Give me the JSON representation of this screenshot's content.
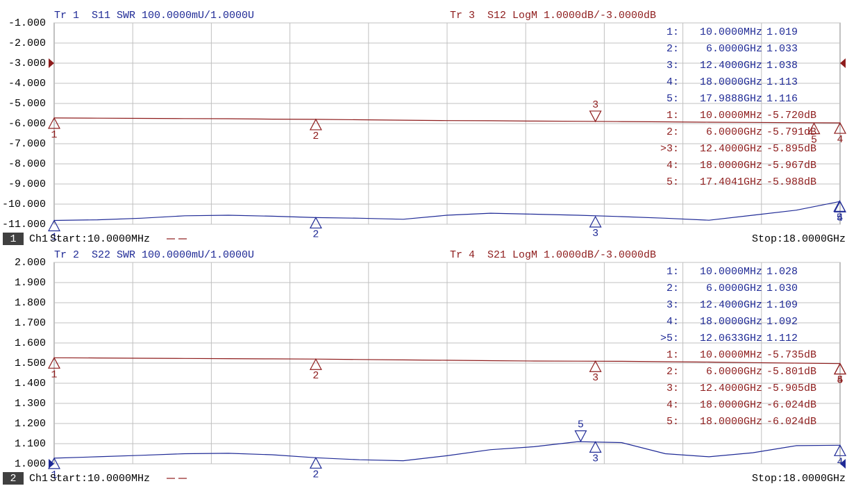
{
  "chart_data": [
    {
      "type": "line",
      "channel": "1",
      "channel_name": "Ch1",
      "start": "Start:10.0000MHz",
      "stop": "Stop:18.0000GHz",
      "xlim": [
        0.01,
        18
      ],
      "ylim": [
        -11,
        -1
      ],
      "y2lim": [
        1,
        2
      ],
      "grid": true,
      "yticks": [
        {
          "value": -1,
          "label": "-1.000"
        },
        {
          "value": -2,
          "label": "-2.000"
        },
        {
          "value": -3,
          "label": "-3.000"
        },
        {
          "value": -4,
          "label": "-4.000"
        },
        {
          "value": -5,
          "label": "-5.000"
        },
        {
          "value": -6,
          "label": "-6.000"
        },
        {
          "value": -7,
          "label": "-7.000"
        },
        {
          "value": -8,
          "label": "-8.000"
        },
        {
          "value": -9,
          "label": "-9.000"
        },
        {
          "value": -10,
          "label": "-10.000"
        },
        {
          "value": -11,
          "label": "-11.000"
        }
      ],
      "series": [
        {
          "name": "Tr 1  S11 SWR 100.0000mU/1.0000U",
          "color": "#1f2a96",
          "axis": "y2",
          "x": [
            0.01,
            1,
            2,
            3,
            4,
            5,
            6,
            7,
            8,
            9,
            10,
            11,
            12,
            13,
            14,
            15,
            16,
            17,
            18
          ],
          "values": [
            1.019,
            1.022,
            1.03,
            1.042,
            1.045,
            1.04,
            1.033,
            1.03,
            1.025,
            1.045,
            1.055,
            1.05,
            1.045,
            1.038,
            1.03,
            1.02,
            1.045,
            1.07,
            1.113
          ],
          "markers": [
            {
              "label": "1:",
              "name": "1",
              "x": 0.01,
              "x_label": "10.0000MHz",
              "y": 1.019,
              "y_label": "1.019"
            },
            {
              "label": "2:",
              "name": "2",
              "x": 6,
              "x_label": "6.0000GHz",
              "y": 1.033,
              "y_label": "1.033"
            },
            {
              "label": "3:",
              "name": "3",
              "x": 12.4,
              "x_label": "12.4000GHz",
              "y": 1.038,
              "y_label": "1.038"
            },
            {
              "label": "4:",
              "name": "4",
              "x": 18,
              "x_label": "18.0000GHz",
              "y": 1.113,
              "y_label": "1.113"
            },
            {
              "label": "5:",
              "name": "5",
              "x": 17.9888,
              "x_label": "17.9888GHz",
              "y": 1.116,
              "y_label": "1.116"
            }
          ]
        },
        {
          "name": "Tr 3  S12 LogM 1.0000dB/-3.0000dB",
          "color": "#8e1c1c",
          "axis": "y",
          "ref": -3,
          "x": [
            0.01,
            1,
            2,
            3,
            4,
            5,
            6,
            7,
            8,
            9,
            10,
            11,
            12,
            13,
            14,
            15,
            16,
            17,
            18
          ],
          "values": [
            -5.72,
            -5.73,
            -5.74,
            -5.75,
            -5.76,
            -5.78,
            -5.791,
            -5.81,
            -5.83,
            -5.85,
            -5.86,
            -5.875,
            -5.885,
            -5.9,
            -5.915,
            -5.93,
            -5.94,
            -5.955,
            -5.967
          ],
          "markers": [
            {
              "label": "1:",
              "name": "1",
              "x": 0.01,
              "x_label": "10.0000MHz",
              "y": -5.72,
              "y_label": "-5.720dB"
            },
            {
              "label": "2:",
              "name": "2",
              "x": 6,
              "x_label": "6.0000GHz",
              "y": -5.791,
              "y_label": "-5.791dB"
            },
            {
              "label": ">3:",
              "name": "3",
              "x": 12.4,
              "x_label": "12.4000GHz",
              "y": -5.895,
              "y_label": "-5.895dB"
            },
            {
              "label": "4:",
              "name": "4",
              "x": 18,
              "x_label": "18.0000GHz",
              "y": -5.967,
              "y_label": "-5.967dB"
            },
            {
              "label": "5:",
              "name": "5",
              "x": 17.4041,
              "x_label": "17.4041GHz",
              "y": -5.988,
              "y_label": "-5.988dB"
            }
          ]
        }
      ]
    },
    {
      "type": "line",
      "channel": "2",
      "channel_name": "Ch1",
      "start": "Start:10.0000MHz",
      "stop": "Stop:18.0000GHz",
      "xlim": [
        0.01,
        18
      ],
      "ylim": [
        1,
        2
      ],
      "y2lim": [
        -11,
        -1
      ],
      "grid": true,
      "yticks": [
        {
          "value": 2,
          "label": "2.000"
        },
        {
          "value": 1.9,
          "label": "1.900"
        },
        {
          "value": 1.8,
          "label": "1.800"
        },
        {
          "value": 1.7,
          "label": "1.700"
        },
        {
          "value": 1.6,
          "label": "1.600"
        },
        {
          "value": 1.5,
          "label": "1.500"
        },
        {
          "value": 1.4,
          "label": "1.400"
        },
        {
          "value": 1.3,
          "label": "1.300"
        },
        {
          "value": 1.2,
          "label": "1.200"
        },
        {
          "value": 1.1,
          "label": "1.100"
        },
        {
          "value": 1,
          "label": "1.000"
        }
      ],
      "series": [
        {
          "name": "Tr 2  S22 SWR 100.0000mU/1.0000U",
          "color": "#1f2a96",
          "axis": "y",
          "ref": 1,
          "x": [
            0.01,
            1,
            2,
            3,
            4,
            5,
            6,
            7,
            8,
            9,
            10,
            11,
            12,
            13,
            14,
            15,
            16,
            17,
            18
          ],
          "values": [
            1.028,
            1.035,
            1.042,
            1.05,
            1.052,
            1.045,
            1.03,
            1.02,
            1.015,
            1.04,
            1.07,
            1.085,
            1.11,
            1.105,
            1.05,
            1.035,
            1.055,
            1.09,
            1.092
          ],
          "markers": [
            {
              "label": "1:",
              "name": "1",
              "x": 0.01,
              "x_label": "10.0000MHz",
              "y": 1.028,
              "y_label": "1.028"
            },
            {
              "label": "2:",
              "name": "2",
              "x": 6,
              "x_label": "6.0000GHz",
              "y": 1.03,
              "y_label": "1.030"
            },
            {
              "label": "3:",
              "name": "3",
              "x": 12.4,
              "x_label": "12.4000GHz",
              "y": 1.109,
              "y_label": "1.109"
            },
            {
              "label": "4:",
              "name": "4",
              "x": 18,
              "x_label": "18.0000GHz",
              "y": 1.092,
              "y_label": "1.092"
            },
            {
              "label": ">5:",
              "name": "5",
              "x": 12.0633,
              "x_label": "12.0633GHz",
              "y": 1.112,
              "y_label": "1.112"
            }
          ]
        },
        {
          "name": "Tr 4  S21 LogM 1.0000dB/-3.0000dB",
          "color": "#8e1c1c",
          "axis": "y2",
          "x": [
            0.01,
            1,
            2,
            3,
            4,
            5,
            6,
            7,
            8,
            9,
            10,
            11,
            12,
            13,
            14,
            15,
            16,
            17,
            18
          ],
          "values": [
            -5.735,
            -5.745,
            -5.76,
            -5.77,
            -5.78,
            -5.79,
            -5.801,
            -5.82,
            -5.84,
            -5.86,
            -5.88,
            -5.895,
            -5.902,
            -5.91,
            -5.93,
            -5.95,
            -5.975,
            -6.0,
            -6.024
          ],
          "markers": [
            {
              "label": "1:",
              "name": "1",
              "x": 0.01,
              "x_label": "10.0000MHz",
              "y": -5.735,
              "y_label": "-5.735dB"
            },
            {
              "label": "2:",
              "name": "2",
              "x": 6,
              "x_label": "6.0000GHz",
              "y": -5.801,
              "y_label": "-5.801dB"
            },
            {
              "label": "3:",
              "name": "3",
              "x": 12.4,
              "x_label": "12.4000GHz",
              "y": -5.905,
              "y_label": "-5.905dB"
            },
            {
              "label": "4:",
              "name": "4",
              "x": 18,
              "x_label": "18.0000GHz",
              "y": -6.024,
              "y_label": "-6.024dB"
            },
            {
              "label": "5:",
              "name": "5",
              "x": 18,
              "x_label": "18.0000GHz",
              "y": -6.024,
              "y_label": "-6.024dB"
            }
          ]
        }
      ]
    }
  ]
}
